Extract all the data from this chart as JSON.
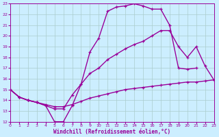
{
  "xlabel": "Windchill (Refroidissement éolien,°C)",
  "xlim": [
    0,
    23
  ],
  "ylim": [
    12,
    23
  ],
  "yticks": [
    12,
    13,
    14,
    15,
    16,
    17,
    18,
    19,
    20,
    21,
    22,
    23
  ],
  "xticks": [
    0,
    1,
    2,
    3,
    4,
    5,
    6,
    7,
    8,
    9,
    10,
    11,
    12,
    13,
    14,
    15,
    16,
    17,
    18,
    19,
    20,
    21,
    22,
    23
  ],
  "background_color": "#cceeff",
  "grid_color": "#aacccc",
  "line_color": "#990099",
  "line_width": 1.0,
  "marker_size": 3.0,
  "curves": [
    {
      "x": [
        0,
        1,
        2,
        3,
        4,
        5,
        6,
        7,
        8,
        9,
        10,
        11,
        12,
        13,
        14,
        15,
        16,
        17,
        18,
        19,
        20,
        21
      ],
      "y": [
        15.0,
        14.3,
        14.0,
        13.8,
        13.5,
        12.0,
        12.0,
        13.5,
        15.5,
        18.5,
        19.8,
        22.3,
        22.7,
        22.8,
        23.0,
        22.8,
        22.5,
        22.5,
        21.0,
        17.0,
        16.9,
        17.0
      ]
    },
    {
      "x": [
        0,
        1,
        2,
        3,
        4,
        5,
        6,
        7,
        8,
        9,
        10,
        11,
        12,
        13,
        14,
        15,
        16,
        17,
        18,
        19,
        20,
        21,
        22,
        23
      ],
      "y": [
        15.0,
        14.3,
        14.0,
        13.8,
        13.5,
        13.2,
        13.2,
        14.5,
        15.5,
        16.5,
        17.0,
        17.8,
        18.3,
        18.8,
        19.2,
        19.5,
        20.0,
        20.5,
        20.5,
        19.0,
        18.0,
        19.0,
        17.2,
        15.9
      ]
    },
    {
      "x": [
        0,
        1,
        2,
        3,
        4,
        5,
        6,
        7,
        8,
        9,
        10,
        11,
        12,
        13,
        14,
        15,
        16,
        17,
        18,
        19,
        20,
        21,
        22,
        23
      ],
      "y": [
        15.0,
        14.3,
        14.0,
        13.8,
        13.6,
        13.4,
        13.4,
        13.6,
        13.9,
        14.2,
        14.4,
        14.6,
        14.8,
        15.0,
        15.1,
        15.2,
        15.3,
        15.4,
        15.5,
        15.6,
        15.7,
        15.7,
        15.8,
        15.9
      ]
    }
  ]
}
